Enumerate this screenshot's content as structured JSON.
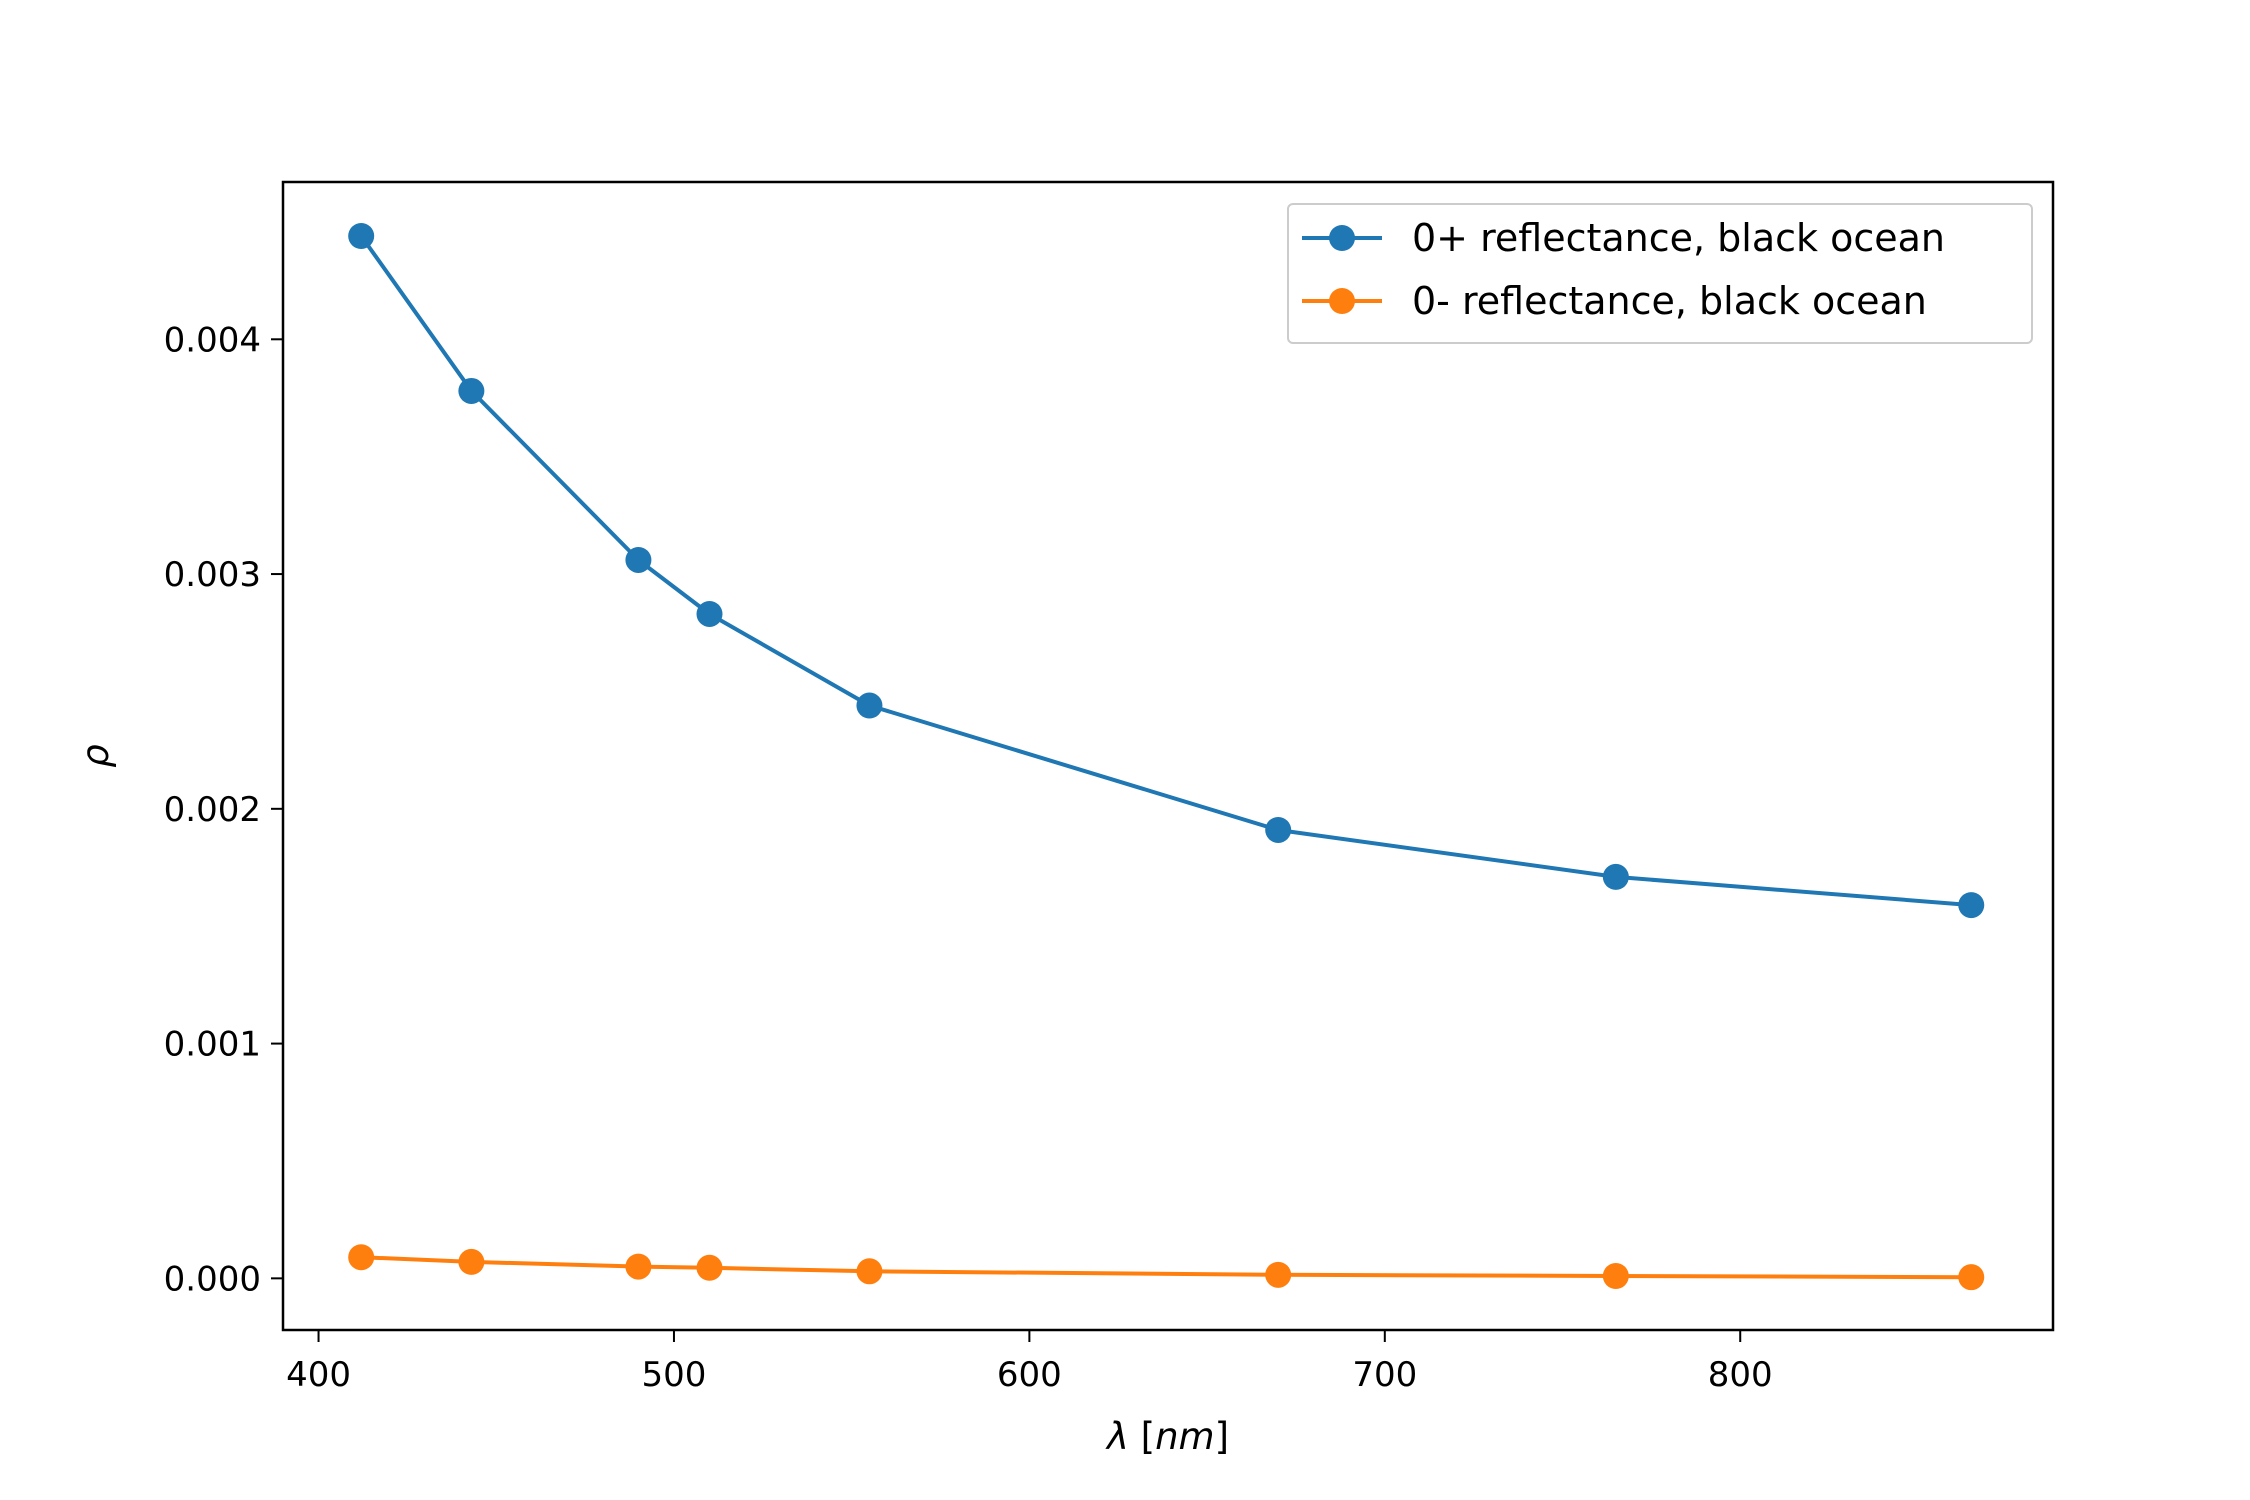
{
  "chart_data": {
    "type": "line",
    "title": "",
    "xlabel_base": "λ",
    "xlabel_unit": "nm",
    "ylabel": "ρ",
    "xlim": [
      390,
      888
    ],
    "ylim": [
      -0.00022,
      0.00467
    ],
    "xticks": [
      400,
      500,
      600,
      700,
      800
    ],
    "xtick_labels": [
      "400",
      "500",
      "600",
      "700",
      "800"
    ],
    "yticks": [
      0.0,
      0.001,
      0.002,
      0.003,
      0.004
    ],
    "ytick_labels": [
      "0.000",
      "0.001",
      "0.002",
      "0.003",
      "0.004"
    ],
    "grid": false,
    "legend_position": "top-right",
    "x": [
      412,
      443,
      490,
      510,
      555,
      670,
      765,
      865
    ],
    "series": [
      {
        "name": "0+ reflectance, black ocean",
        "color": "#1f77b4",
        "marker": "circle",
        "values": [
          0.00444,
          0.00378,
          0.00306,
          0.00283,
          0.00244,
          0.00191,
          0.00171,
          0.00159
        ]
      },
      {
        "name": "0- reflectance, black ocean",
        "color": "#ff7f0e",
        "marker": "circle",
        "values": [
          9e-05,
          7e-05,
          5e-05,
          4.5e-05,
          3e-05,
          1.5e-05,
          1e-05,
          5e-06
        ]
      }
    ]
  }
}
